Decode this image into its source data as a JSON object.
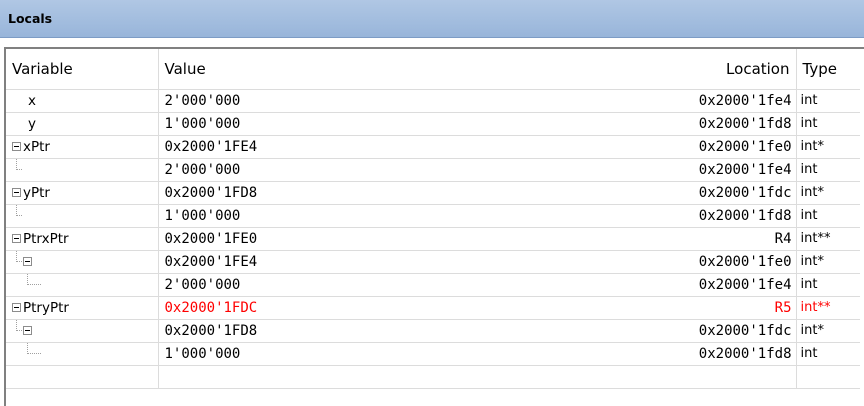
{
  "title": "Locals",
  "columns": {
    "variable": "Variable",
    "value": "Value",
    "location": "Location",
    "type": "Type"
  },
  "rows": [
    {
      "name": "x",
      "value": "2'000'000",
      "location": "0x2000'1fe4",
      "type": "int"
    },
    {
      "name": "y",
      "value": "1'000'000",
      "location": "0x2000'1fd8",
      "type": "int"
    },
    {
      "name": "xPtr",
      "value": "0x2000'1FE4",
      "location": "0x2000'1fe0",
      "type": "int*"
    },
    {
      "name": "",
      "value": "2'000'000",
      "location": "0x2000'1fe4",
      "type": "int"
    },
    {
      "name": "yPtr",
      "value": "0x2000'1FD8",
      "location": "0x2000'1fdc",
      "type": "int*"
    },
    {
      "name": "",
      "value": "1'000'000",
      "location": "0x2000'1fd8",
      "type": "int"
    },
    {
      "name": "PtrxPtr",
      "value": "0x2000'1FE0",
      "location": "R4",
      "type": "int**"
    },
    {
      "name": "",
      "value": "0x2000'1FE4",
      "location": "0x2000'1fe0",
      "type": "int*"
    },
    {
      "name": "",
      "value": "2'000'000",
      "location": "0x2000'1fe4",
      "type": "int"
    },
    {
      "name": "PtryPtr",
      "value": "0x2000'1FDC",
      "location": "R5",
      "type": "int**"
    },
    {
      "name": "",
      "value": "0x2000'1FD8",
      "location": "0x2000'1fdc",
      "type": "int*"
    },
    {
      "name": "",
      "value": "1'000'000",
      "location": "0x2000'1fd8",
      "type": "int"
    }
  ],
  "colors": {
    "changed_value": "#ff0000",
    "title_bar": "#a7c0e1"
  }
}
